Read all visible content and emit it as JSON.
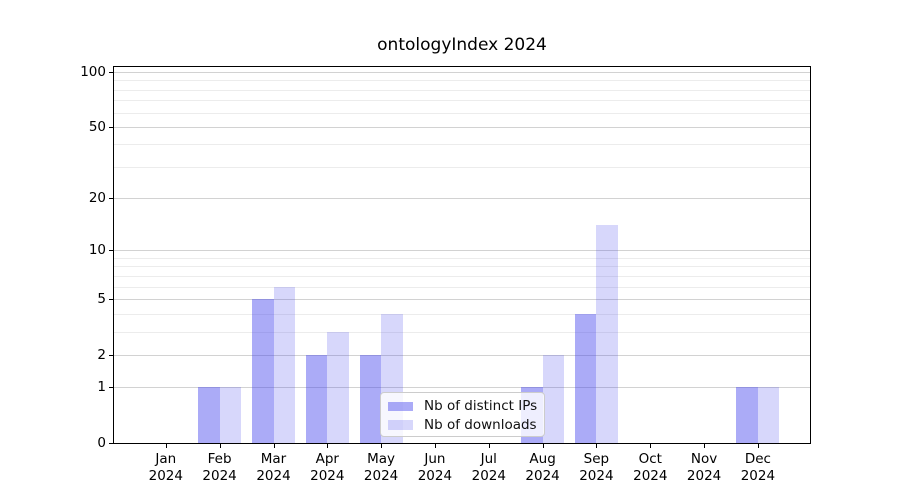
{
  "title": "ontologyIndex 2024",
  "legend": {
    "items": [
      {
        "label": "Nb of distinct IPs",
        "color": "rgba(68,68,238,0.45)"
      },
      {
        "label": "Nb of downloads",
        "color": "rgba(68,68,238,0.21)"
      }
    ]
  },
  "chart_data": {
    "type": "bar",
    "title": "ontologyIndex 2024",
    "categories": [
      "Jan",
      "Feb",
      "Mar",
      "Apr",
      "May",
      "Jun",
      "Jul",
      "Aug",
      "Sep",
      "Oct",
      "Nov",
      "Dec"
    ],
    "category_year": "2024",
    "series": [
      {
        "name": "Nb of distinct IPs",
        "color": "rgba(68,68,238,0.45)",
        "values": [
          0,
          1,
          5,
          2,
          2,
          0,
          0,
          1,
          4,
          0,
          0,
          1
        ]
      },
      {
        "name": "Nb of downloads",
        "color": "rgba(68,68,238,0.21)",
        "values": [
          0,
          1,
          6,
          3,
          4,
          0,
          0,
          2,
          14,
          0,
          0,
          1
        ]
      }
    ],
    "y_axis": {
      "scale": "log1p",
      "ticks": [
        0,
        1,
        2,
        5,
        10,
        20,
        50,
        100
      ],
      "minor_gridlines": [
        3,
        4,
        6,
        7,
        8,
        9,
        30,
        40,
        60,
        70,
        80,
        90
      ],
      "range": [
        0,
        106
      ]
    },
    "grid": "horizontal",
    "legend_position": "lower center",
    "colors": {
      "bar_base": "#4444ee",
      "major_grid": "#d2d2d2",
      "minor_grid": "#ececec",
      "spine": "#000000"
    }
  }
}
